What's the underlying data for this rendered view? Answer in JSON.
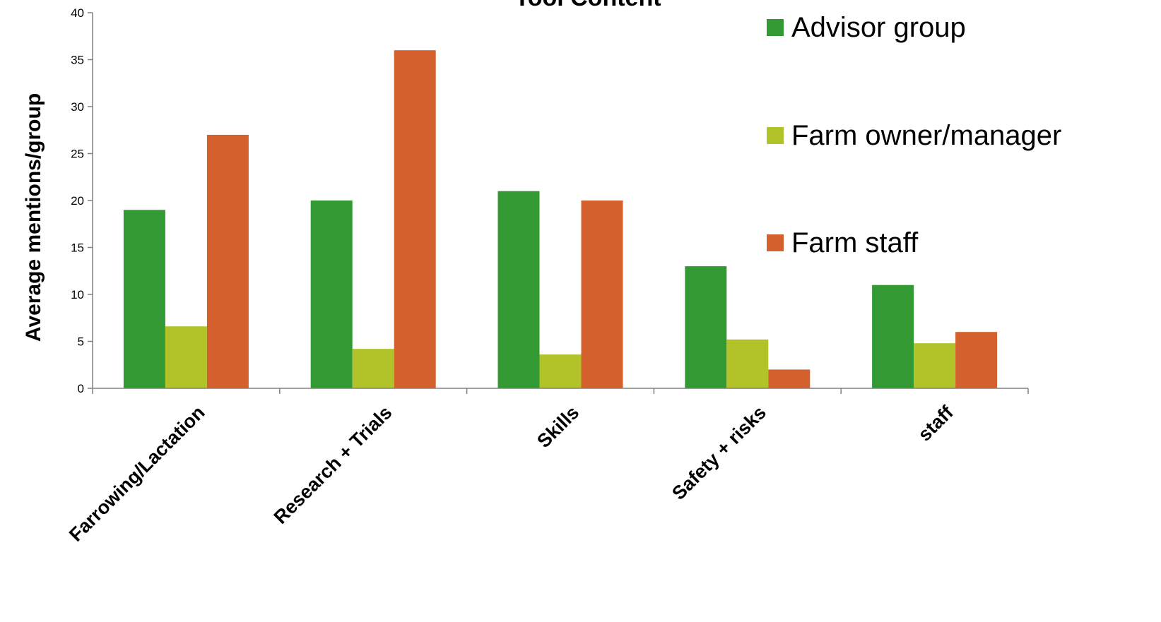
{
  "chart_data": {
    "type": "bar",
    "title": "Tool Content",
    "xlabel": "",
    "ylabel": "Average mentions/group",
    "ylim": [
      0,
      40
    ],
    "yticks": [
      0,
      5,
      10,
      15,
      20,
      25,
      30,
      35,
      40
    ],
    "categories": [
      "Farrowing/Lactation",
      "Research + Trials",
      "Skills",
      "Safety + risks",
      "staff"
    ],
    "series": [
      {
        "name": "Advisor group",
        "color": "#339933",
        "values": [
          19,
          20,
          21,
          13,
          11
        ]
      },
      {
        "name": "Farm owner/manager",
        "color": "#b2c229",
        "values": [
          6.6,
          4.2,
          3.6,
          5.2,
          4.8
        ]
      },
      {
        "name": "Farm staff",
        "color": "#d4602d",
        "values": [
          27,
          36,
          20,
          2,
          6
        ]
      }
    ],
    "grid": false,
    "legend_position": "right"
  }
}
